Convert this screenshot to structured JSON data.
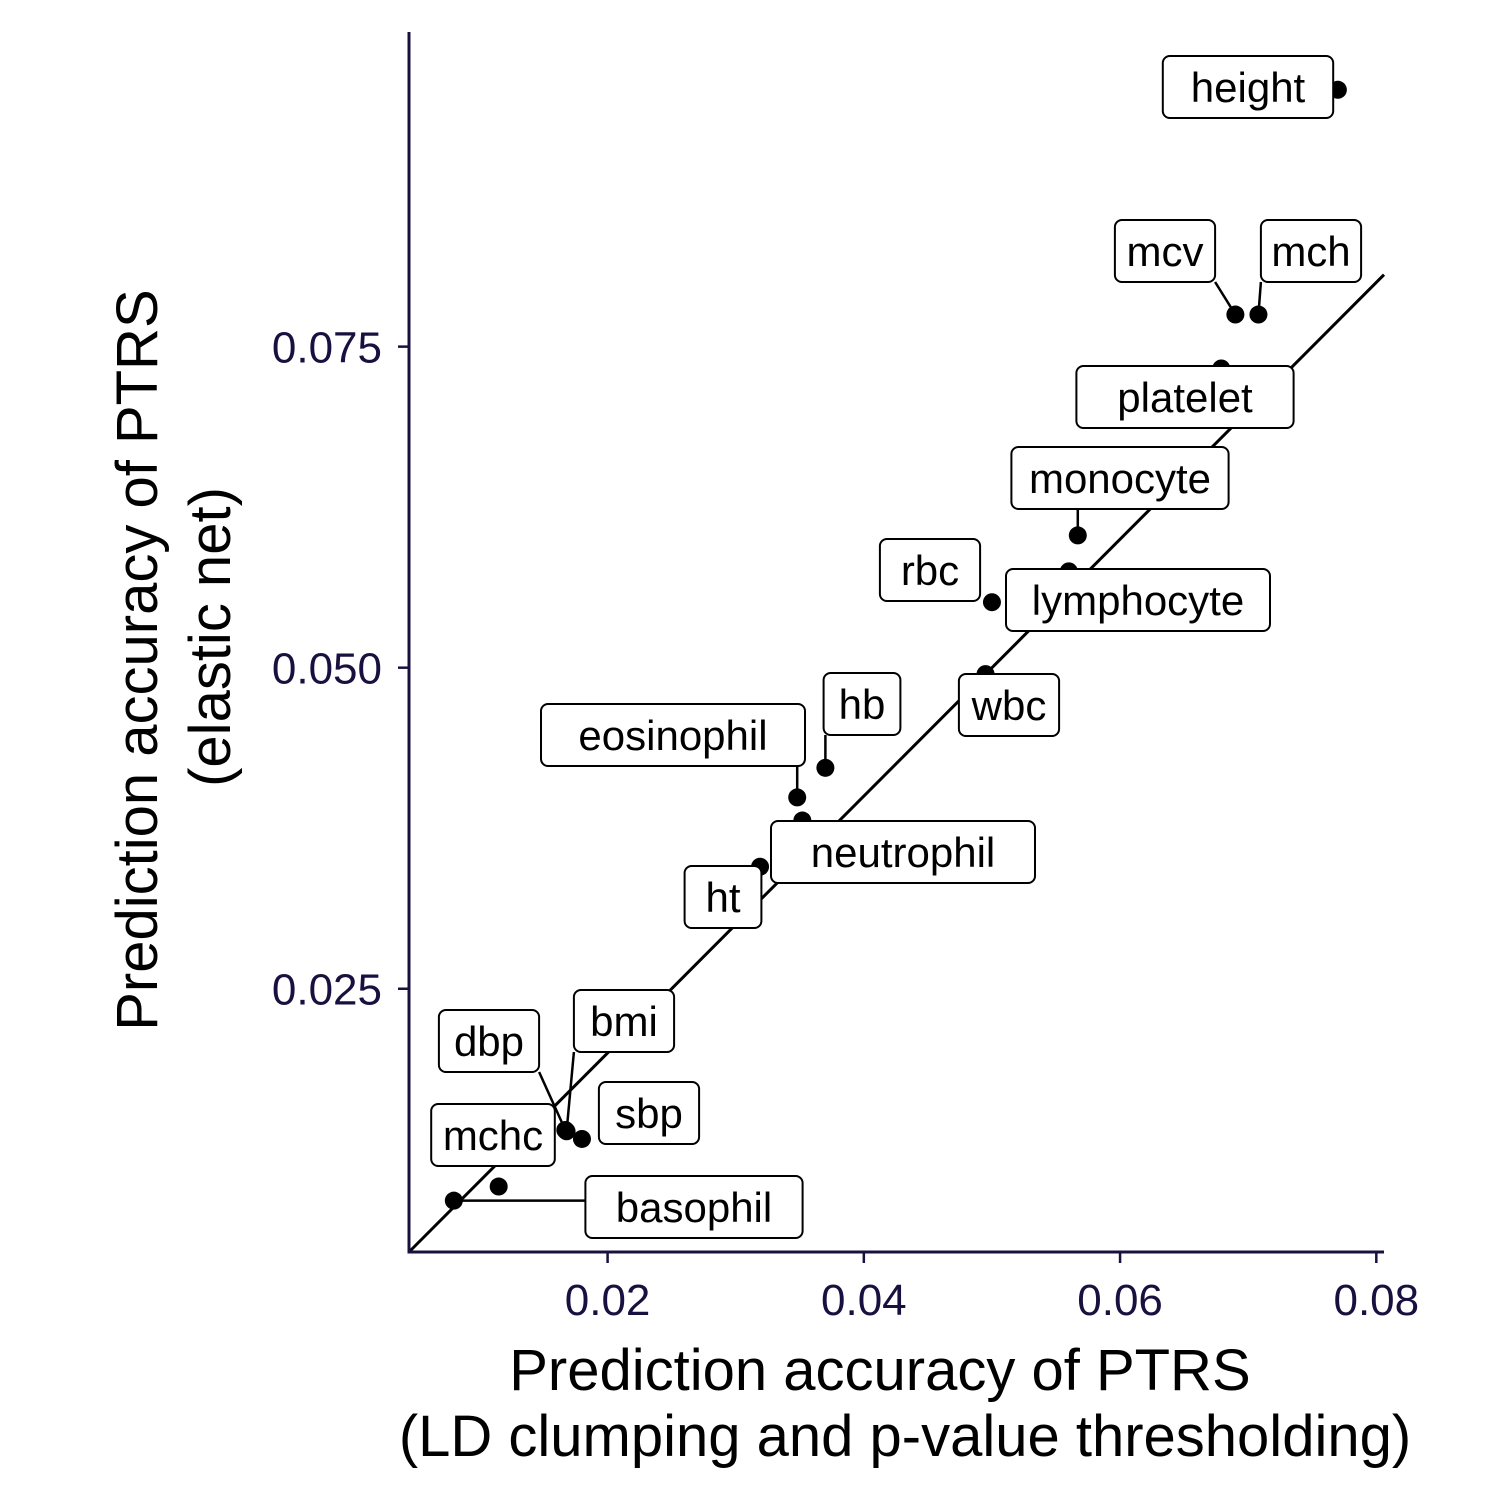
{
  "chart_data": {
    "type": "scatter",
    "xlabel": [
      "Prediction accuracy of PTRS",
      "(LD clumping and p-value thresholding)"
    ],
    "ylabel": [
      "Prediction accuracy of PTRS",
      "(elastic net)"
    ],
    "xlim": [
      0.0045,
      0.0806
    ],
    "ylim": [
      0.0045,
      0.0995
    ],
    "xticks": [
      0.02,
      0.04,
      0.06,
      0.08
    ],
    "xtick_labels": [
      "0.02",
      "0.04",
      "0.06",
      "0.08"
    ],
    "yticks": [
      0.025,
      0.05,
      0.075
    ],
    "ytick_labels": [
      "0.025",
      "0.050",
      "0.075"
    ],
    "reference_line": {
      "type": "identity",
      "slope": 1,
      "intercept": 0
    },
    "points": [
      {
        "label": "height",
        "x": 0.077,
        "y": 0.095
      },
      {
        "label": "mcv",
        "x": 0.069,
        "y": 0.0775
      },
      {
        "label": "mch",
        "x": 0.0708,
        "y": 0.0775
      },
      {
        "label": "platelet",
        "x": 0.0679,
        "y": 0.0733
      },
      {
        "label": "monocyte",
        "x": 0.0567,
        "y": 0.0603
      },
      {
        "label": "lymphocyte",
        "x": 0.056,
        "y": 0.0575
      },
      {
        "label": "rbc",
        "x": 0.05,
        "y": 0.0551
      },
      {
        "label": "wbc",
        "x": 0.0495,
        "y": 0.0495
      },
      {
        "label": "hb",
        "x": 0.037,
        "y": 0.0422
      },
      {
        "label": "eosinophil",
        "x": 0.0348,
        "y": 0.0399
      },
      {
        "label": "neutrophil",
        "x": 0.0352,
        "y": 0.0381
      },
      {
        "label": "ht",
        "x": 0.0319,
        "y": 0.0345
      },
      {
        "label": "bmi",
        "x": 0.0168,
        "y": 0.0139
      },
      {
        "label": "dbp",
        "x": 0.0167,
        "y": 0.014
      },
      {
        "label": "sbp",
        "x": 0.018,
        "y": 0.0133
      },
      {
        "label": "mchc",
        "x": 0.0115,
        "y": 0.0096
      },
      {
        "label": "basophil",
        "x": 0.008,
        "y": 0.0085
      }
    ],
    "colors": {
      "axis": "#1a1040",
      "ticks_text": "#1a1040",
      "points": "#000000",
      "line": "#000000"
    },
    "grid": false,
    "legend": "none"
  }
}
